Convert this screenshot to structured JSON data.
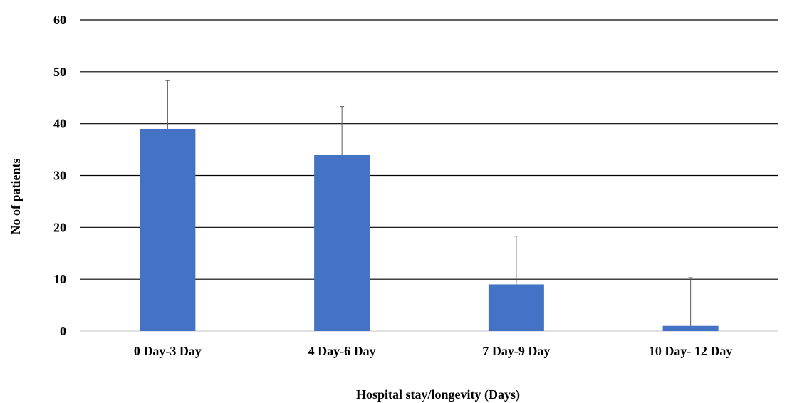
{
  "chart_data": {
    "type": "bar",
    "categories": [
      "0 Day-3 Day",
      "4 Day-6 Day",
      "7 Day-9 Day",
      "10 Day- 12 Day"
    ],
    "values": [
      39,
      34,
      9,
      1
    ],
    "error_bars_plus": [
      9.3,
      9.3,
      9.3,
      9.3
    ],
    "title": "",
    "xlabel": "Hospital stay/longevity (Days)",
    "ylabel": "No of patients",
    "ylim": [
      0,
      60
    ],
    "yticks": [
      0,
      10,
      20,
      30,
      40,
      50,
      60
    ],
    "grid": true,
    "legend": "none",
    "bar_color": "#4472C4",
    "gridline_color": "#000000",
    "error_bar_color": "#595959"
  }
}
